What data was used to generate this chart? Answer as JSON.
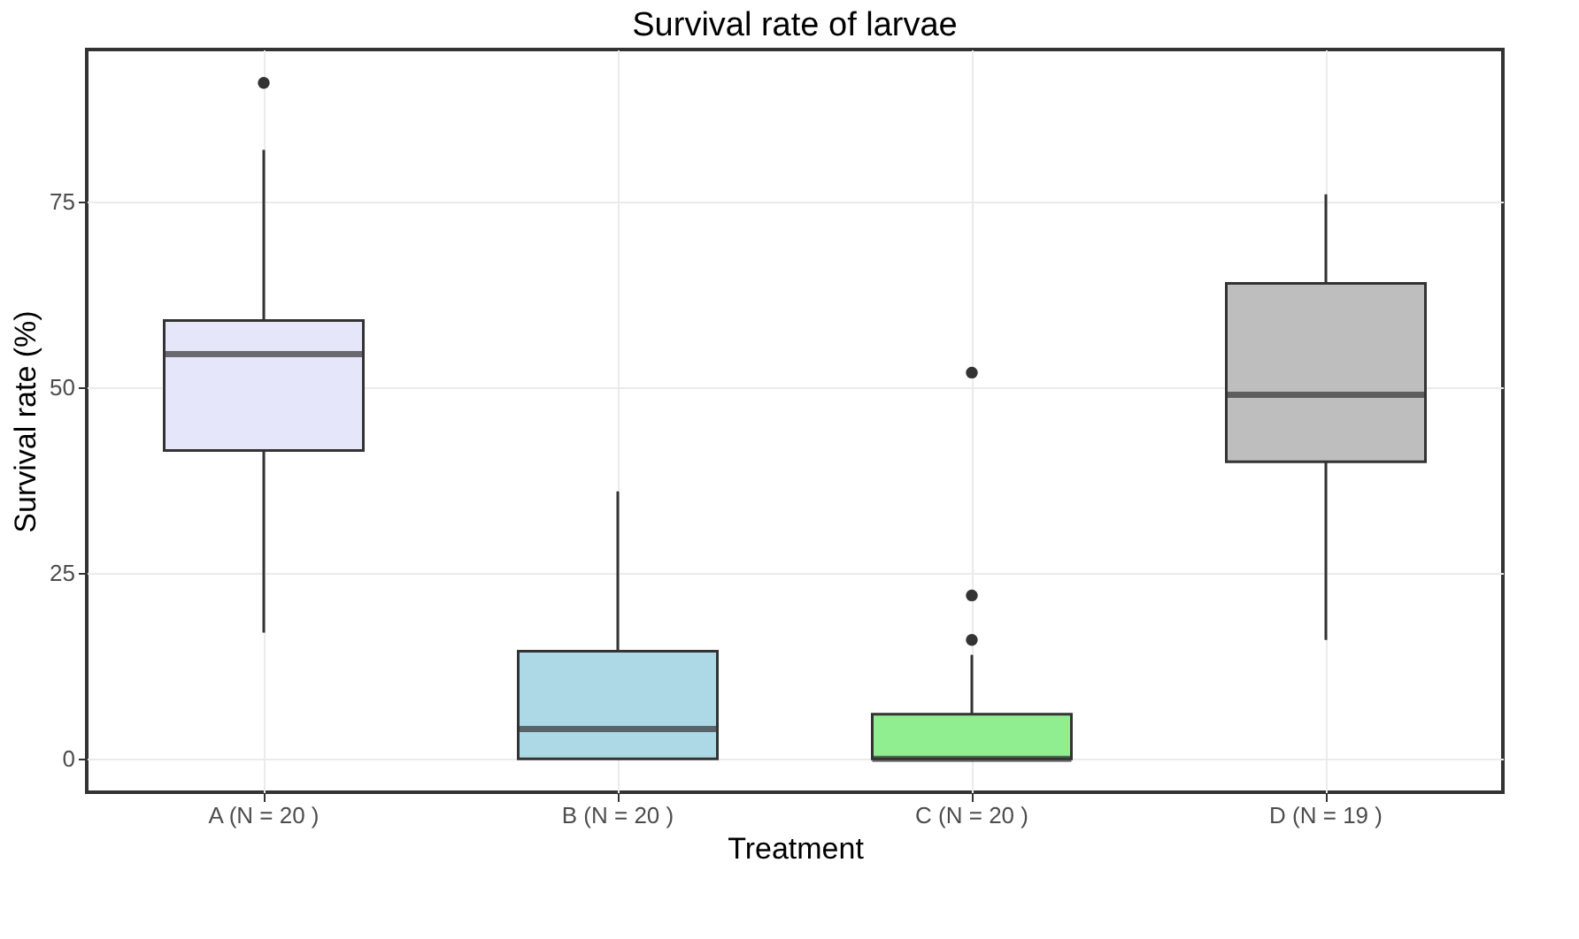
{
  "chart_data": {
    "type": "box",
    "title": "Survival rate of larvae",
    "xlabel": "Treatment",
    "ylabel": "Survival rate (%)",
    "categories": [
      "A (N = 20 )",
      "B (N = 20 )",
      "C (N = 20 )",
      "D (N = 19 )"
    ],
    "colors": [
      "#e6e6fa",
      "#add8e6",
      "#90ee90",
      "#bebebe"
    ],
    "boxes": [
      {
        "low": 17,
        "q1": 41.5,
        "median": 54.5,
        "q3": 59,
        "high": 82,
        "outliers": [
          91
        ]
      },
      {
        "low": 0,
        "q1": 0,
        "median": 4,
        "q3": 14.5,
        "high": 36
      },
      {
        "low": 0,
        "q1": 0,
        "median": 0,
        "q3": 6,
        "high": 14,
        "outliers": [
          16,
          22,
          52
        ]
      },
      {
        "low": 16,
        "q1": 40,
        "median": 49,
        "q3": 64,
        "high": 76
      }
    ],
    "ylim": [
      -4.5,
      95.5
    ],
    "yticks": [
      0,
      25,
      50,
      75
    ],
    "grid": true,
    "legend": false
  }
}
